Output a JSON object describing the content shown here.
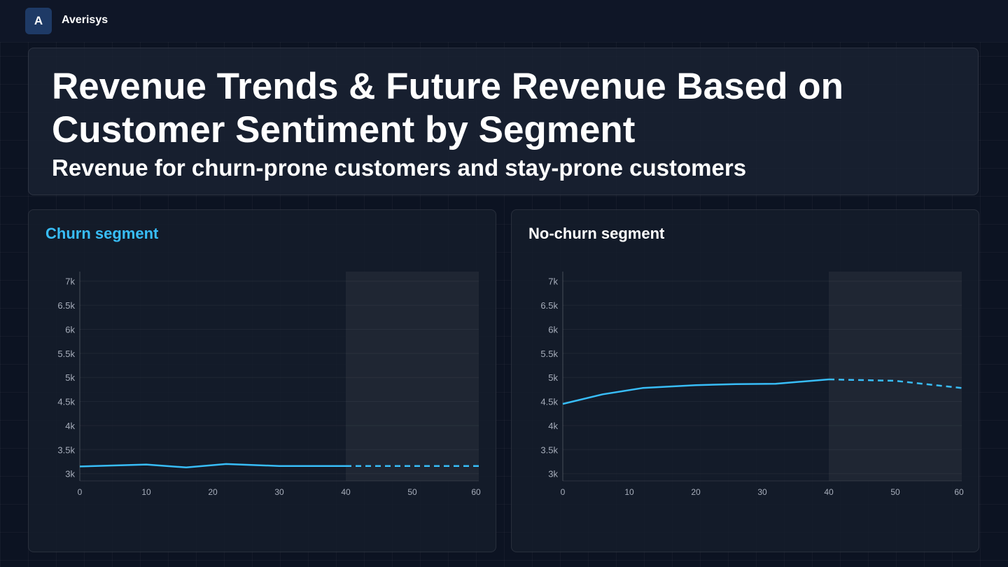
{
  "app": {
    "logo_letter": "A",
    "name": "Averisys"
  },
  "header": {
    "title": "Revenue Trends & Future Revenue Based on Customer Sentiment by Segment",
    "subtitle": "Revenue for churn-prone customers and stay-prone customers"
  },
  "colors": {
    "line": "#38bdf8",
    "churn_title": "#38bdf8",
    "nochurn_title": "#ffffff",
    "forecast_band": "#1f2633"
  },
  "chart_data": [
    {
      "type": "line",
      "title": "Churn segment",
      "xlabel": "",
      "ylabel": "",
      "xlim": [
        0,
        60
      ],
      "ylim": [
        2850,
        7200
      ],
      "y_ticks": [
        {
          "value": 7000,
          "label": "7k"
        },
        {
          "value": 6500,
          "label": "6.5k"
        },
        {
          "value": 6000,
          "label": "6k"
        },
        {
          "value": 5500,
          "label": "5.5k"
        },
        {
          "value": 5000,
          "label": "5k"
        },
        {
          "value": 4500,
          "label": "4.5k"
        },
        {
          "value": 4000,
          "label": "4k"
        },
        {
          "value": 3500,
          "label": "3.5k"
        },
        {
          "value": 3000,
          "label": "3k"
        }
      ],
      "x_ticks": [
        {
          "value": 0,
          "label": "0"
        },
        {
          "value": 10,
          "label": "10"
        },
        {
          "value": 20,
          "label": "20"
        },
        {
          "value": 30,
          "label": "30"
        },
        {
          "value": 40,
          "label": "40"
        },
        {
          "value": 50,
          "label": "50"
        },
        {
          "value": 60,
          "label": "60"
        }
      ],
      "forecast_region": [
        40,
        60
      ],
      "series": [
        {
          "style": "solid",
          "x": [
            0,
            10,
            16,
            22,
            30,
            40
          ],
          "y": [
            3150,
            3190,
            3130,
            3200,
            3160,
            3160
          ]
        },
        {
          "style": "dashed",
          "x": [
            40,
            60
          ],
          "y": [
            3160,
            3160
          ]
        }
      ]
    },
    {
      "type": "line",
      "title": "No-churn segment",
      "xlabel": "",
      "ylabel": "",
      "xlim": [
        0,
        60
      ],
      "ylim": [
        2850,
        7200
      ],
      "y_ticks": [
        {
          "value": 7000,
          "label": "7k"
        },
        {
          "value": 6500,
          "label": "6.5k"
        },
        {
          "value": 6000,
          "label": "6k"
        },
        {
          "value": 5500,
          "label": "5.5k"
        },
        {
          "value": 5000,
          "label": "5k"
        },
        {
          "value": 4500,
          "label": "4.5k"
        },
        {
          "value": 4000,
          "label": "4k"
        },
        {
          "value": 3500,
          "label": "3.5k"
        },
        {
          "value": 3000,
          "label": "3k"
        }
      ],
      "x_ticks": [
        {
          "value": 0,
          "label": "0"
        },
        {
          "value": 10,
          "label": "10"
        },
        {
          "value": 20,
          "label": "20"
        },
        {
          "value": 30,
          "label": "30"
        },
        {
          "value": 40,
          "label": "40"
        },
        {
          "value": 50,
          "label": "50"
        },
        {
          "value": 60,
          "label": "60"
        }
      ],
      "forecast_region": [
        40,
        60
      ],
      "series": [
        {
          "style": "solid",
          "x": [
            0,
            6,
            12,
            20,
            26,
            32,
            40
          ],
          "y": [
            4450,
            4650,
            4780,
            4840,
            4860,
            4870,
            4960
          ]
        },
        {
          "style": "dashed",
          "x": [
            40,
            50,
            60
          ],
          "y": [
            4960,
            4930,
            4780
          ]
        }
      ]
    }
  ]
}
